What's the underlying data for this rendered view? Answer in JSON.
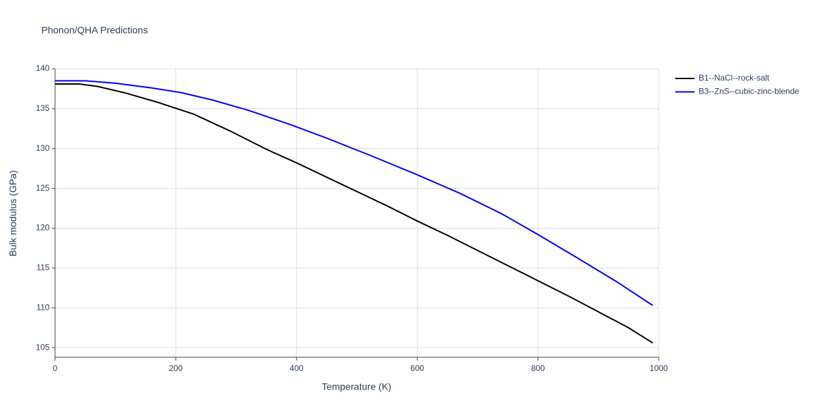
{
  "chart_data": {
    "type": "line",
    "title": "Phonon/QHA Predictions",
    "x_label": "Temperature (K)",
    "y_label": "Bulk modulus (GPa)",
    "xlim": [
      0,
      1000
    ],
    "xticks": [
      0,
      200,
      400,
      600,
      800,
      1000
    ],
    "ylim": [
      103.8,
      140
    ],
    "yticks": [
      105,
      110,
      115,
      120,
      125,
      130,
      135,
      140
    ],
    "grid": true,
    "legend": "right",
    "series": [
      {
        "name": "B1--NaCl--rock-salt",
        "color": "#000000",
        "x": [
          0,
          40,
          70,
          115,
          170,
          230,
          290,
          350,
          400,
          450,
          500,
          550,
          600,
          650,
          700,
          750,
          800,
          850,
          900,
          950,
          990
        ],
        "values": [
          138.1,
          138.1,
          137.8,
          137.0,
          135.8,
          134.3,
          132.2,
          129.9,
          128.2,
          126.4,
          124.6,
          122.8,
          120.9,
          119.1,
          117.2,
          115.3,
          113.4,
          111.5,
          109.5,
          107.5,
          105.6
        ]
      },
      {
        "name": "B3--ZnS--cubic-zinc-blende",
        "color": "#0000ff",
        "x": [
          0,
          50,
          100,
          160,
          210,
          260,
          320,
          390,
          450,
          520,
          600,
          670,
          740,
          800,
          860,
          930,
          990
        ],
        "values": [
          138.5,
          138.5,
          138.2,
          137.6,
          137.0,
          136.1,
          134.8,
          133.0,
          131.3,
          129.2,
          126.7,
          124.4,
          121.8,
          119.2,
          116.5,
          113.3,
          110.3
        ]
      }
    ]
  }
}
